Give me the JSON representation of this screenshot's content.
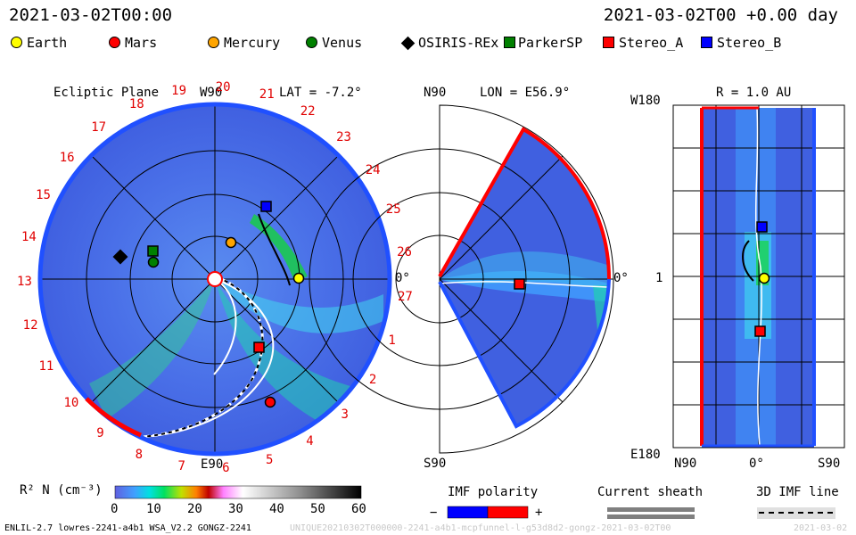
{
  "header": {
    "timestamp": "2021-03-02T00:00",
    "run_time": "2021-03-02T00 +0.00 day"
  },
  "legend": {
    "items": [
      {
        "label": "Earth",
        "color": "#ffff00",
        "shape": "circle"
      },
      {
        "label": "Mars",
        "color": "#ff0000",
        "shape": "circle"
      },
      {
        "label": "Mercury",
        "color": "#ffa500",
        "shape": "circle"
      },
      {
        "label": "Venus",
        "color": "#008000",
        "shape": "circle"
      },
      {
        "label": "OSIRIS-REx",
        "color": "#000000",
        "shape": "diamond"
      },
      {
        "label": "ParkerSP",
        "color": "#008000",
        "shape": "square"
      },
      {
        "label": "Stereo_A",
        "color": "#ff0000",
        "shape": "square"
      },
      {
        "label": "Stereo_B",
        "color": "#0000ff",
        "shape": "square"
      }
    ]
  },
  "panels": {
    "ecliptic": {
      "title": "Ecliptic Plane",
      "top_label": "W90",
      "bottom_label": "E90",
      "right_label": "0°",
      "lat_label": "LAT = -7.2°",
      "carrington_ticks": [
        "19",
        "20",
        "21",
        "22",
        "23",
        "24",
        "25",
        "26",
        "27",
        "1",
        "2",
        "3",
        "4",
        "5",
        "6",
        "7",
        "8",
        "9",
        "10",
        "11",
        "12",
        "13",
        "14",
        "15",
        "16",
        "17",
        "18"
      ]
    },
    "meridional": {
      "top_label": "N90",
      "bottom_label": "S90",
      "right_label": "0°",
      "lon_label": "LON = E56.9°"
    },
    "radial": {
      "title": "R = 1.0 AU",
      "top_left": "W180",
      "bottom_left": "E180",
      "mid_left": "1",
      "x_labels": [
        "N90",
        "0°",
        "S90"
      ]
    }
  },
  "colorbar": {
    "label": "R² N (cm⁻³)",
    "ticks": [
      "0",
      "10",
      "20",
      "30",
      "40",
      "50",
      "60"
    ],
    "min": 0,
    "max": 60
  },
  "imf_polarity": {
    "title": "IMF polarity",
    "minus": "−",
    "plus": "+",
    "colors": [
      "#0000ff",
      "#ff0000"
    ]
  },
  "current_sheath": {
    "title": "Current sheath"
  },
  "imf_line": {
    "title": "3D IMF line"
  },
  "footer": {
    "model": "ENLIL-2.7 lowres-2241-a4b1 WSA_V2.2 GONGZ-2241",
    "filename": "UNIQUE20210302T000000-2241-a4b1-mcpfunnel-l-g53d8d2-gongz-2021-03-02T00",
    "date": "2021-03-02"
  }
}
